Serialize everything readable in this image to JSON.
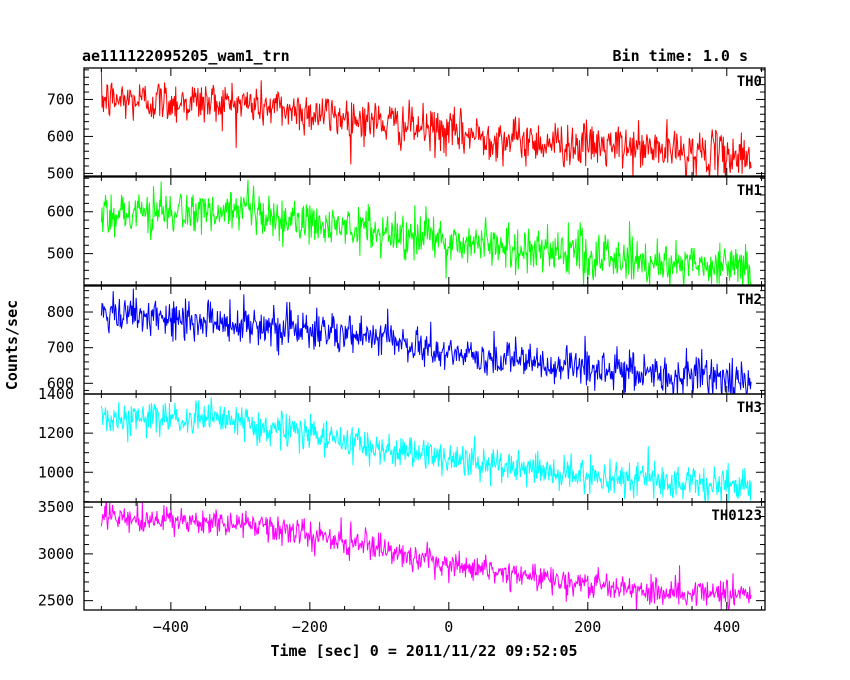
{
  "header": {
    "title": "ae111122095205_wam1_trn",
    "bin_time": "Bin time: 1.0 s"
  },
  "chart_data": {
    "type": "line",
    "xlabel": "Time [sec] 0 = 2011/11/22 09:52:05",
    "ylabel": "Counts/sec",
    "xlim": [
      -525,
      455
    ],
    "x_ticks": [
      -400,
      -200,
      0,
      200,
      400
    ],
    "x_range": [
      -500,
      435
    ],
    "panels": [
      {
        "name": "TH0",
        "color": "#ff0000",
        "ylim": [
          493,
          785
        ],
        "y_ticks": [
          500,
          600,
          700
        ],
        "trend": [
          [
            -500,
            700
          ],
          [
            -300,
            690
          ],
          [
            -200,
            665
          ],
          [
            -100,
            640
          ],
          [
            0,
            610
          ],
          [
            100,
            590
          ],
          [
            200,
            575
          ],
          [
            300,
            565
          ],
          [
            435,
            545
          ]
        ],
        "noise": 30
      },
      {
        "name": "TH1",
        "color": "#00ff00",
        "ylim": [
          425,
          683
        ],
        "y_ticks": [
          500,
          600
        ],
        "trend": [
          [
            -500,
            600
          ],
          [
            -300,
            595
          ],
          [
            -200,
            570
          ],
          [
            -100,
            555
          ],
          [
            0,
            530
          ],
          [
            100,
            515
          ],
          [
            200,
            495
          ],
          [
            300,
            480
          ],
          [
            435,
            470
          ]
        ],
        "noise": 28
      },
      {
        "name": "TH2",
        "color": "#0000ff",
        "ylim": [
          570,
          873
        ],
        "y_ticks": [
          600,
          700,
          800
        ],
        "trend": [
          [
            -500,
            790
          ],
          [
            -300,
            770
          ],
          [
            -200,
            750
          ],
          [
            -100,
            725
          ],
          [
            0,
            685
          ],
          [
            100,
            660
          ],
          [
            200,
            640
          ],
          [
            300,
            625
          ],
          [
            435,
            610
          ]
        ],
        "noise": 28
      },
      {
        "name": "TH3",
        "color": "#00ffff",
        "ylim": [
          848,
          1400
        ],
        "y_ticks": [
          1000,
          1200,
          1400
        ],
        "trend": [
          [
            -500,
            1280
          ],
          [
            -300,
            1260
          ],
          [
            -200,
            1190
          ],
          [
            -100,
            1130
          ],
          [
            0,
            1070
          ],
          [
            100,
            1020
          ],
          [
            200,
            980
          ],
          [
            300,
            955
          ],
          [
            435,
            930
          ]
        ],
        "noise": 45
      },
      {
        "name": "TH0123",
        "color": "#ff00ff",
        "ylim": [
          2400,
          3555
        ],
        "y_ticks": [
          2500,
          3000,
          3500
        ],
        "trend": [
          [
            -500,
            3380
          ],
          [
            -300,
            3320
          ],
          [
            -200,
            3200
          ],
          [
            -100,
            3050
          ],
          [
            0,
            2900
          ],
          [
            100,
            2780
          ],
          [
            200,
            2680
          ],
          [
            300,
            2610
          ],
          [
            435,
            2550
          ]
        ],
        "noise": 75
      }
    ]
  }
}
